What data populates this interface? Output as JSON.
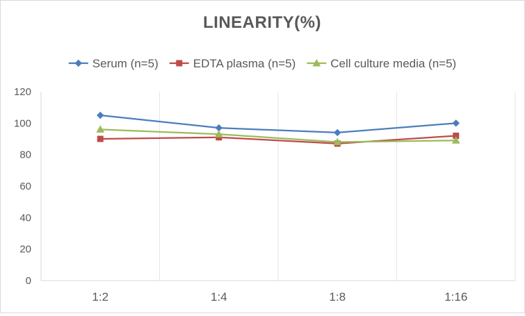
{
  "chart_data": {
    "type": "line",
    "title": "LINEARITY(%)",
    "xlabel": "",
    "ylabel": "",
    "categories": [
      "1:2",
      "1:4",
      "1:8",
      "1:16"
    ],
    "ylim": [
      0,
      120
    ],
    "yticks": [
      0,
      20,
      40,
      60,
      80,
      100,
      120
    ],
    "grid": "vertical",
    "legend_position": "top",
    "series": [
      {
        "name": "Serum (n=5)",
        "values": [
          105,
          97,
          94,
          100
        ],
        "color": "#4a7ebb",
        "marker": "diamond"
      },
      {
        "name": "EDTA plasma (n=5)",
        "values": [
          90,
          91,
          87,
          92
        ],
        "color": "#be4b48",
        "marker": "square"
      },
      {
        "name": "Cell culture media (n=5)",
        "values": [
          96,
          93,
          88,
          89
        ],
        "color": "#9bbb59",
        "marker": "triangle"
      }
    ]
  }
}
